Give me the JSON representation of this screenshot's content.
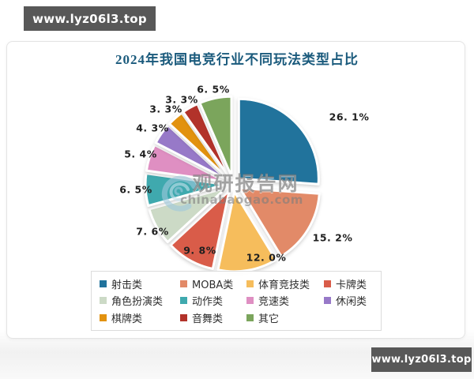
{
  "badges": {
    "top_left": "www.lyz06l3.top",
    "bottom_right": "www.lyz06l3.top"
  },
  "watermark": {
    "line1": "观研报告网",
    "line2": "chinabaogao.com",
    "logo": "swirl-logo"
  },
  "chart_data": {
    "type": "pie",
    "title": "2024年我国电竞行业不同玩法类型占比",
    "title_color": "#1a5a7c",
    "categories": [
      "射击类",
      "MOBA类",
      "体育竞技类",
      "卡牌类",
      "角色扮演类",
      "动作类",
      "竞速类",
      "休闲类",
      "棋牌类",
      "音舞类",
      "其它"
    ],
    "values": [
      26.1,
      15.2,
      12.0,
      9.8,
      7.6,
      6.5,
      5.4,
      4.3,
      3.3,
      3.3,
      6.5
    ],
    "display_labels": [
      "26. 1%",
      "15. 2%",
      "12. 0%",
      "9. 8%",
      "7. 6%",
      "6. 5%",
      "5. 4%",
      "4. 3%",
      "3. 3%",
      "3. 3%",
      "6. 5%"
    ],
    "colors": [
      "#21739c",
      "#e28a68",
      "#f6bd5c",
      "#d95c49",
      "#ccdac6",
      "#3fa9ae",
      "#df8fc2",
      "#9779c8",
      "#e2920f",
      "#b2322a",
      "#7ba55c"
    ],
    "start_angle_deg": 0,
    "direction": "clockwise",
    "exploded": true,
    "legend_position": "bottom",
    "units": "%"
  }
}
